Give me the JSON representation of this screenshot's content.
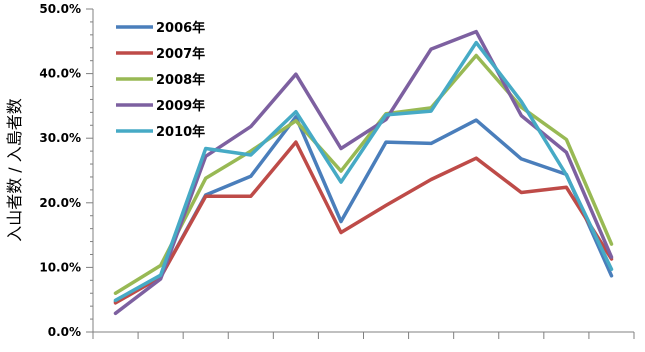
{
  "chart_data": {
    "type": "line",
    "title": "",
    "xlabel": "",
    "ylabel": "入山者数 / 入島者数",
    "x": [
      1,
      2,
      3,
      4,
      5,
      6,
      7,
      8,
      9,
      10,
      11,
      12
    ],
    "ylim": [
      0,
      0.5
    ],
    "yticks": [
      0,
      0.1,
      0.2,
      0.3,
      0.4,
      0.5
    ],
    "ytick_labels": [
      "0.0%",
      "10.0%",
      "20.0%",
      "30.0%",
      "40.0%",
      "50.0%"
    ],
    "y_minor_step": 0.02,
    "grid": false,
    "legend_position": "top-left",
    "series": [
      {
        "name": "2006年",
        "color": "#4a7ebb",
        "values": [
          0.047,
          0.085,
          0.212,
          0.241,
          0.333,
          0.171,
          0.294,
          0.292,
          0.328,
          0.268,
          0.244,
          0.087
        ]
      },
      {
        "name": "2007年",
        "color": "#be4b48",
        "values": [
          0.045,
          0.085,
          0.21,
          0.21,
          0.294,
          0.154,
          0.196,
          0.236,
          0.269,
          0.216,
          0.224,
          0.113
        ]
      },
      {
        "name": "2008年",
        "color": "#98b954",
        "values": [
          0.06,
          0.103,
          0.238,
          0.28,
          0.327,
          0.249,
          0.338,
          0.347,
          0.428,
          0.348,
          0.298,
          0.136
        ]
      },
      {
        "name": "2009年",
        "color": "#7d60a0",
        "values": [
          0.029,
          0.082,
          0.272,
          0.318,
          0.399,
          0.284,
          0.329,
          0.438,
          0.465,
          0.335,
          0.278,
          0.116
        ]
      },
      {
        "name": "2010年",
        "color": "#46aac5",
        "values": [
          0.049,
          0.088,
          0.284,
          0.274,
          0.341,
          0.232,
          0.336,
          0.342,
          0.448,
          0.357,
          0.243,
          0.097
        ]
      }
    ]
  }
}
